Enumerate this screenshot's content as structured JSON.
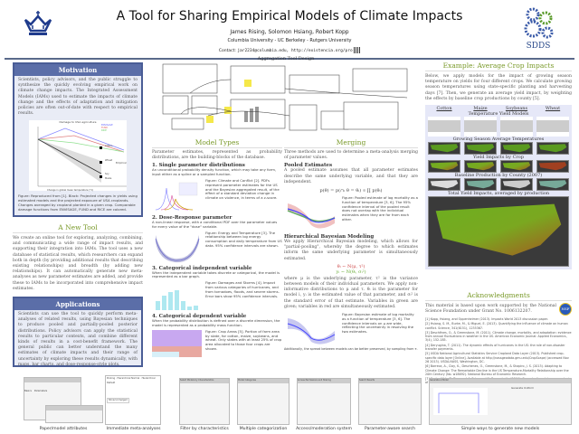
{
  "header": {
    "title": "A Tool for Sharing Empirical Models of Climate Impacts",
    "authors": "James Rising, Solomon Hsiang, Robert Kopp",
    "affiliations": "Columbia University - UC Berkeley - Rutgers University",
    "contact_label": "Contact:",
    "contact": "jar2234@columbia.edu, http://existencia.org/pro",
    "logo_right": "SDDS"
  },
  "motivation": {
    "title": "Motivation",
    "text": "Scientists, policy advisors, and the public struggle to synthesize the quickly evolving empirical work on climate change impacts. The Integrated Assessment Models (IAMs) used to estimate the impacts of climate change and the effects of adaptation and mitigation policies are often out-of-date with respect to empirical results.",
    "figure_title": "Damage to USA agriculture",
    "legend": [
      "ENVISAGE",
      "FUND",
      "RICE"
    ],
    "crops": [
      "Cotton",
      "Wheat",
      "Soy",
      "Soy",
      "Maize"
    ],
    "label_empirical": "Empirical",
    "xlabel": "Change in global mean temperature (°C)",
    "caption": "Figure: Reproduced from [1]. Black: Projected changes in yields using estimated models and the projected exposure of USA croplands. Changes averaged by cropland planted in a given crop. Comparable damage functions from ENVISAGE, FUND and RICE are colored."
  },
  "new_tool": {
    "title": "A New Tool",
    "text": "We create an online tool for exploring, analyzing, combining, and communicating a wide range of impact results, and supporting their integration into IAMs. The tool uses a new database of statistical results, which researchers can expand both in depth (by providing additional results that describing existing relationships) and breadth (by adding new relationships). It can automatically generate new meta-analyses as new parameter estimates are added, and provide these to IAMs to be incorporated into comprehensive impact estimates."
  },
  "applications": {
    "title": "Applications",
    "text": "Scientists can use the tool to quickly perform meta-analyses of related results, using Bayesian techniques to produce pooled and partially-pooled posterior distributions. Policy advisors can apply the statistical results to particular contexts, and combine different kinds of results in a cost-benefit framework. The general public can better understand the many estimates of climate impacts and their range of uncertainty by exploring these results dynamically, with maps, bar charts, and dose-response-style plots."
  },
  "design": {
    "title": "Aggregation Tool Design"
  },
  "model_types": {
    "title": "Model Types",
    "intro": "Parameter estimates, represented as probability distributions, are the building-blocks of the database.",
    "items": [
      {
        "heading": "1. Single parameter distributions",
        "desc": "An unconditional probability density function, which may take any form, input either as a spline or a sampled function.",
        "caption": "Figure: Climate and Conflict [2]. PDFs represent parameter estimates for the US and the Bayesian aggregated result, of the effect of a standard deviation change in climate on violence, in terms of a z-score."
      },
      {
        "heading": "2. Dose-Response parameter",
        "desc": "A non-linear response, with a conditional PDF over the parameter values for every value of the \"dose\" variable.",
        "caption": "Figure: Energy and Temperature [3]. The relationship between log energy consumption and daily temperature from US data. 95% confidence intervals are shown."
      },
      {
        "heading": "3. Categorical independent variable",
        "desc": "When the independent variable takes discrete or categorical, the model is represented as a bar graph.",
        "caption": "Figure: Damages and Storms [4]. Impact from various categories of hurricanes, and from tornadoes, floods, and severe storms. Error bars show 95% confidence intervals."
      },
      {
        "heading": "4. Categorical dependent variable",
        "desc": "When the probability distribution is defined over a discrete dimension, the model is represented as a probability mass function.",
        "caption": "Figure: Crop Areas [5]. Portion of farm area by state, for cotton, maize, soybeans, and wheat. Only states with at least 25% of crop area allocated to those four crops are shown."
      }
    ]
  },
  "merging": {
    "title": "Merging",
    "intro": "Three methods are used to determine a meta-analysis merging of parameter values.",
    "pooled_heading": "Pooled Estimates",
    "pooled_text": "A pooled estimate assumes that all parameter estimates describe the same underlying variable, and that they are independent.",
    "pooled_eq": "p(θ) = p(∩ᵢ θ = θᵢ) ∝ ∏ p(θᵢ)",
    "pooled_caption": "Figure: Pooled estimate of log mortality as a function of temperature [3, 6]. The 95% confidence interval of the pooled result does not overlap with the individual estimates when they are far from each other.",
    "hbm_heading": "Hierarchical Bayesian Modeling",
    "hbm_text": "We apply Hierarchical Bayesian modeling, which allows for \"partial-pooling\", whereby the degree to which estimates inform the same underlying parameter is simultaneously estimated.",
    "eq1": "θᵢ ∼ N(μ, τ²)",
    "eq2": "yᵢ ∼ N(θᵢ, σᵢ²)",
    "hbm_text2": "where μ is the underlying parameter, τ² is the variance between models of their individual parameters. We apply non-informative distributions to μ and τ. θᵢ is the parameter for model i, yᵢ is the estimated value of that parameter, and σᵢ² is the standard error of that estimate. Variables in green are given; variables in red are simultaneously estimated.",
    "hbm_caption": "Figure: Bayesian estimate of log mortality as a function of temperature [3, 6]. The confidence intervals on μ are wide, reflecting the uncertainty in resolving the two estimates.",
    "footnote": "Additionally, the spread between models can be better preserved, by sampling from τ."
  },
  "example": {
    "title": "Example: Average Crop Impacts",
    "text": "Below, we apply models for the impact of growing season temperature on yields for four different crops. We calculate growing season temperatures using state-specific planting and harvesting days [7]. Then, we generate an average yield impact, by weighting the effects by baseline crop productions by county [5].",
    "crops": [
      "Cotton",
      "Maize",
      "Soybeans",
      "Wheat"
    ],
    "rows": [
      "Temperature Yield Models",
      "Growing Season Average Temperatures",
      "Yield Impacts by Crop",
      "Baseline Production by County (2007)",
      "Total Yield Impacts, averaged by production"
    ]
  },
  "ack": {
    "title": "Acknowledgments",
    "text": "This material is based upon work supported by the National Science Foundation under Grant No. 1006132207.",
    "logo": "NSF",
    "refs": [
      "[1] Kopp, Hsiang, and Oppenheimer (2013). Impacts World 2013 discussion paper.",
      "[2] Hsiang, S. M., Burke, M., & Miguel, E. (2013). Quantifying the influence of climate on human conflict. Science, 341(6151), 1235367.",
      "[3] Deschênes, O., & Greenstone, M. (2011). Climate change, mortality, and adaptation: evidence from annual fluctuations in weather in the US. American Economic Journal: Applied Economics, 3(4), 152-185.",
      "[4] Deryugina, T. (2011). The dynamic effects of hurricanes in the US: the role of non-disaster transfer payments.",
      "[5] USDA National Agricultural Statistics Service Cropland Data Layer (2013). Published crop-specific data layer [Online]. Available at http://nassgeodata.gmu.edu/CropScape/ (accessed Nov 26 2013). USDA-NASS, Washington, DC.",
      "[6] Barreca, A., Clay, K., Deschenes, O., Greenstone, M., & Shapiro, J. S. (2013). Adapting to Climate Change: The Remarkable Decline in the US Temperature-Mortality Relationship over the 20th Century (No. w18692). National Bureau of Economic Research.",
      "[7] Sacks, W. J., D. Deryng, J.A. Foley and N. Ramankutty (2010). Crop planting dates: an analysis of global patterns. Global Ecology and Biogeography 19, 607-620."
    ]
  },
  "screenshots": [
    {
      "caption": "Paper/model attributes",
      "tabs": [
        "Basics",
        "Parameters"
      ]
    },
    {
      "caption": "Immediate meta-analyses",
      "tabs": [
        "Pooling",
        "Hierarchical Normal",
        "Hierarchical Default"
      ],
      "button": "Show Unmerged"
    },
    {
      "caption": "Filter by characteristics",
      "title": "Select Models by Characteristics"
    },
    {
      "caption": "Multiple categorization",
      "title": "Model Categories"
    },
    {
      "caption": "Access/moderation system",
      "title": "Access Permissions and Sharing"
    },
    {
      "caption": "Parameter-aware search",
      "title": "Search Results"
    },
    {
      "caption": "Simple ways to generate new models",
      "title": "Generate a Model",
      "subtitle": "Generate Uniform"
    }
  ]
}
